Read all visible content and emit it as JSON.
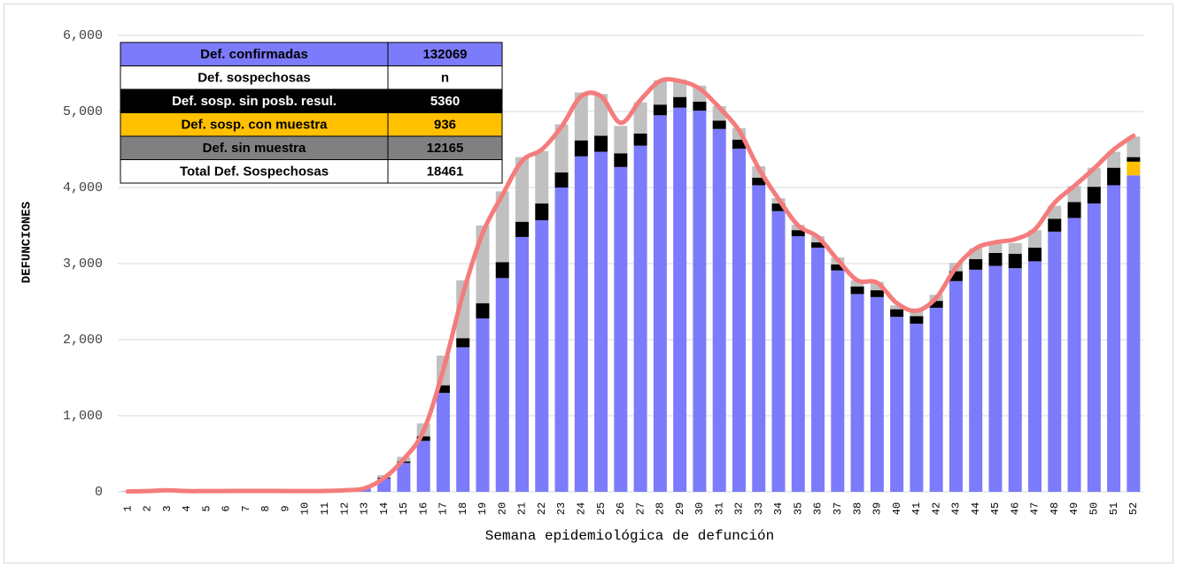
{
  "chart_data": {
    "type": "stacked-bar-line",
    "xlabel": "Semana epidemiológica de defunción",
    "ylabel": "DEFUNCIONES",
    "categories": [
      "1",
      "2",
      "3",
      "4",
      "5",
      "6",
      "7",
      "8",
      "9",
      "10",
      "11",
      "12",
      "13",
      "14",
      "15",
      "16",
      "17",
      "18",
      "19",
      "20",
      "21",
      "22",
      "23",
      "24",
      "25",
      "26",
      "27",
      "28",
      "29",
      "30",
      "31",
      "32",
      "33",
      "34",
      "35",
      "36",
      "37",
      "38",
      "39",
      "40",
      "41",
      "42",
      "43",
      "44",
      "45",
      "46",
      "47",
      "48",
      "49",
      "50",
      "51",
      "52"
    ],
    "ylim": [
      0,
      6000
    ],
    "yticks": [
      0,
      {
        "value": 1000,
        "label": "1,000"
      },
      {
        "value": 2000,
        "label": "2,000"
      },
      {
        "value": 3000,
        "label": "3,000"
      },
      {
        "value": 4000,
        "label": "4,000"
      },
      {
        "value": 5000,
        "label": "5,000"
      },
      {
        "value": 6000,
        "label": "6,000"
      }
    ],
    "grid": true,
    "series": [
      {
        "color": "#7b7bfb",
        "values": [
          5,
          10,
          15,
          8,
          8,
          8,
          10,
          10,
          8,
          8,
          10,
          15,
          40,
          175,
          380,
          670,
          1300,
          1900,
          2280,
          2810,
          3350,
          3570,
          4000,
          4410,
          4470,
          4270,
          4550,
          4950,
          5050,
          5010,
          4770,
          4510,
          4030,
          3690,
          3360,
          3210,
          2910,
          2600,
          2560,
          2300,
          2210,
          2420,
          2770,
          2920,
          2970,
          2940,
          3030,
          3420,
          3600,
          3790,
          4030,
          4160
        ]
      },
      {
        "color": "#ffc000",
        "values": [
          0,
          0,
          0,
          0,
          0,
          0,
          0,
          0,
          0,
          0,
          0,
          0,
          0,
          0,
          0,
          0,
          0,
          0,
          0,
          0,
          0,
          0,
          0,
          0,
          0,
          0,
          0,
          0,
          0,
          0,
          0,
          0,
          0,
          0,
          0,
          0,
          0,
          0,
          0,
          0,
          0,
          0,
          0,
          0,
          0,
          0,
          0,
          0,
          0,
          0,
          0,
          180
        ]
      },
      {
        "color": "#000000",
        "values": [
          0,
          0,
          0,
          0,
          0,
          0,
          0,
          0,
          0,
          0,
          0,
          0,
          0,
          10,
          20,
          60,
          100,
          120,
          200,
          210,
          200,
          220,
          200,
          210,
          210,
          180,
          160,
          140,
          140,
          120,
          110,
          120,
          100,
          100,
          80,
          70,
          80,
          100,
          90,
          100,
          100,
          90,
          130,
          140,
          170,
          190,
          180,
          170,
          210,
          220,
          230,
          60
        ]
      },
      {
        "color": "#c0c0c0",
        "values": [
          0,
          0,
          0,
          0,
          0,
          0,
          0,
          0,
          0,
          0,
          0,
          0,
          0,
          35,
          60,
          170,
          390,
          760,
          1020,
          930,
          850,
          690,
          630,
          630,
          550,
          360,
          410,
          320,
          230,
          210,
          190,
          150,
          150,
          70,
          70,
          80,
          90,
          80,
          110,
          50,
          100,
          80,
          110,
          140,
          130,
          140,
          230,
          170,
          210,
          250,
          210,
          270
        ]
      }
    ],
    "line": {
      "color": "#f47c7c",
      "values": [
        5,
        10,
        20,
        10,
        10,
        10,
        12,
        12,
        10,
        10,
        12,
        20,
        45,
        180,
        430,
        800,
        1600,
        2600,
        3400,
        3900,
        4350,
        4500,
        4800,
        5200,
        5200,
        4850,
        5150,
        5400,
        5400,
        5300,
        5050,
        4750,
        4250,
        3850,
        3500,
        3350,
        3050,
        2780,
        2750,
        2480,
        2380,
        2550,
        2950,
        3200,
        3280,
        3320,
        3450,
        3800,
        4020,
        4250,
        4500,
        4680
      ]
    },
    "table": {
      "rows": [
        [
          "Def. confirmadas",
          132069
        ],
        [
          "Def. sospechosas",
          "n"
        ],
        [
          "Def. sosp. sin posb. resul.",
          5360
        ],
        [
          "Def. sosp. con  muestra",
          936
        ],
        [
          "Def. sin muestra",
          12165
        ],
        [
          "Total Def. Sospechosas",
          18461
        ]
      ],
      "row_colors": [
        "#7b7bfb",
        "#ffffff",
        "#000000",
        "#ffc000",
        "#808080",
        "#ffffff"
      ]
    }
  }
}
